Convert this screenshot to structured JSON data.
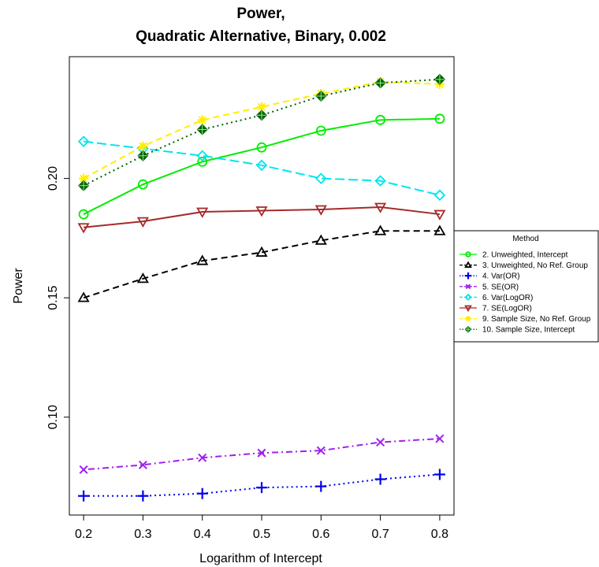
{
  "chart_data": {
    "type": "line",
    "title_line1": "Power,",
    "title_line2": "Quadratic Alternative, Binary, 0.002",
    "xlabel": "Logarithm of Intercept",
    "ylabel": "Power",
    "x": [
      0.2,
      0.3,
      0.4,
      0.5,
      0.6,
      0.7,
      0.8
    ],
    "x_ticks": [
      "0.2",
      "0.3",
      "0.4",
      "0.5",
      "0.6",
      "0.7",
      "0.8"
    ],
    "y_ticks": [
      {
        "value": 0.1,
        "label": "0.10"
      },
      {
        "value": 0.15,
        "label": "0.15"
      },
      {
        "value": 0.2,
        "label": "0.20"
      }
    ],
    "xlim": [
      0.176,
      0.824
    ],
    "ylim": [
      0.059,
      0.251
    ],
    "grid": false,
    "legend_title": "Method",
    "legend_placement": "right",
    "series": [
      {
        "name": "2. Unweighted, Intercept",
        "color": "#00ee00",
        "dash": "solid",
        "marker": "circle",
        "values": [
          0.185,
          0.1975,
          0.207,
          0.213,
          0.22,
          0.2245,
          0.225
        ]
      },
      {
        "name": "3. Unweighted, No Ref. Group",
        "color": "#000000",
        "dash": "dashed",
        "marker": "triangle-up",
        "values": [
          0.15,
          0.158,
          0.1655,
          0.169,
          0.174,
          0.178,
          0.178
        ]
      },
      {
        "name": "4. Var(OR)",
        "color": "#0000ee",
        "dash": "dotted",
        "marker": "plus",
        "values": [
          0.067,
          0.067,
          0.068,
          0.0705,
          0.071,
          0.074,
          0.076
        ]
      },
      {
        "name": "5. SE(OR)",
        "color": "#a020f0",
        "dash": "dotdash",
        "marker": "cross",
        "values": [
          0.078,
          0.08,
          0.083,
          0.085,
          0.086,
          0.0895,
          0.091
        ]
      },
      {
        "name": "6. Var(LogOR)",
        "color": "#00e5ee",
        "dash": "longdash",
        "marker": "diamond",
        "values": [
          0.2155,
          0.2125,
          0.2095,
          0.2055,
          0.2,
          0.199,
          0.193
        ]
      },
      {
        "name": "7. SE(LogOR)",
        "color": "#a52a2a",
        "dash": "solid",
        "marker": "triangle-down",
        "values": [
          0.1795,
          0.182,
          0.186,
          0.1865,
          0.187,
          0.188,
          0.185
        ]
      },
      {
        "name": "9. Sample Size, No Ref. Group",
        "color": "#ffee00",
        "dash": "dashed",
        "marker": "asterisk",
        "values": [
          0.2,
          0.2135,
          0.2245,
          0.23,
          0.2355,
          0.2405,
          0.2395
        ]
      },
      {
        "name": "10. Sample Size, Intercept",
        "color": "#006400",
        "dash": "dotted",
        "marker": "diamond-plus",
        "values": [
          0.197,
          0.2095,
          0.2205,
          0.2265,
          0.2345,
          0.24,
          0.2415
        ]
      }
    ]
  }
}
